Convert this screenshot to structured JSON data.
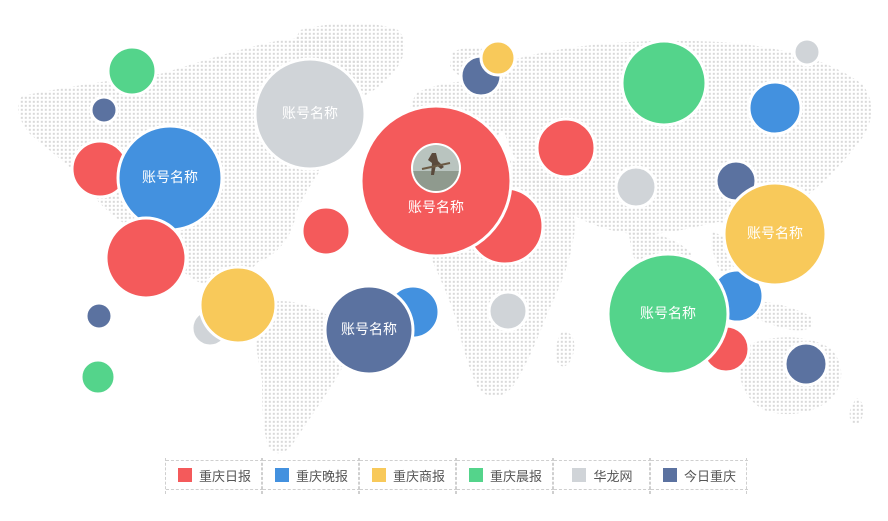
{
  "chart_data": {
    "type": "bubble",
    "legend_position": "bottom",
    "series": [
      {
        "id": "ribao",
        "name": "重庆日报",
        "color": "#f45a5b"
      },
      {
        "id": "wanbao",
        "name": "重庆晚报",
        "color": "#4391df"
      },
      {
        "id": "shang",
        "name": "重庆商报",
        "color": "#f8c95a"
      },
      {
        "id": "chen",
        "name": "重庆晨报",
        "color": "#54d48b"
      },
      {
        "id": "hualong",
        "name": "华龙网",
        "color": "#d0d4d8"
      },
      {
        "id": "jinri",
        "name": "今日重庆",
        "color": "#5b72a0"
      }
    ],
    "bubbles": [
      {
        "series": "chen",
        "label": ""
      },
      {
        "series": "jinri",
        "label": ""
      },
      {
        "series": "ribao",
        "label": ""
      },
      {
        "series": "wanbao",
        "label": "账号名称"
      },
      {
        "series": "ribao",
        "label": ""
      },
      {
        "series": "hualong",
        "label": ""
      },
      {
        "series": "shang",
        "label": ""
      },
      {
        "series": "jinri",
        "label": ""
      },
      {
        "series": "chen",
        "label": ""
      },
      {
        "series": "hualong",
        "label": "账号名称"
      },
      {
        "series": "ribao",
        "label": ""
      },
      {
        "series": "wanbao",
        "label": ""
      },
      {
        "series": "jinri",
        "label": "账号名称"
      },
      {
        "series": "ribao",
        "label": ""
      },
      {
        "series": "ribao",
        "label": "账号名称",
        "has_avatar": true
      },
      {
        "series": "jinri",
        "label": ""
      },
      {
        "series": "shang",
        "label": ""
      },
      {
        "series": "hualong",
        "label": ""
      },
      {
        "series": "ribao",
        "label": ""
      },
      {
        "series": "hualong",
        "label": ""
      },
      {
        "series": "chen",
        "label": ""
      },
      {
        "series": "wanbao",
        "label": ""
      },
      {
        "series": "hualong",
        "label": ""
      },
      {
        "series": "jinri",
        "label": ""
      },
      {
        "series": "wanbao",
        "label": ""
      },
      {
        "series": "shang",
        "label": "账号名称"
      },
      {
        "series": "ribao",
        "label": ""
      },
      {
        "series": "chen",
        "label": "账号名称"
      },
      {
        "series": "jinri",
        "label": ""
      }
    ]
  }
}
